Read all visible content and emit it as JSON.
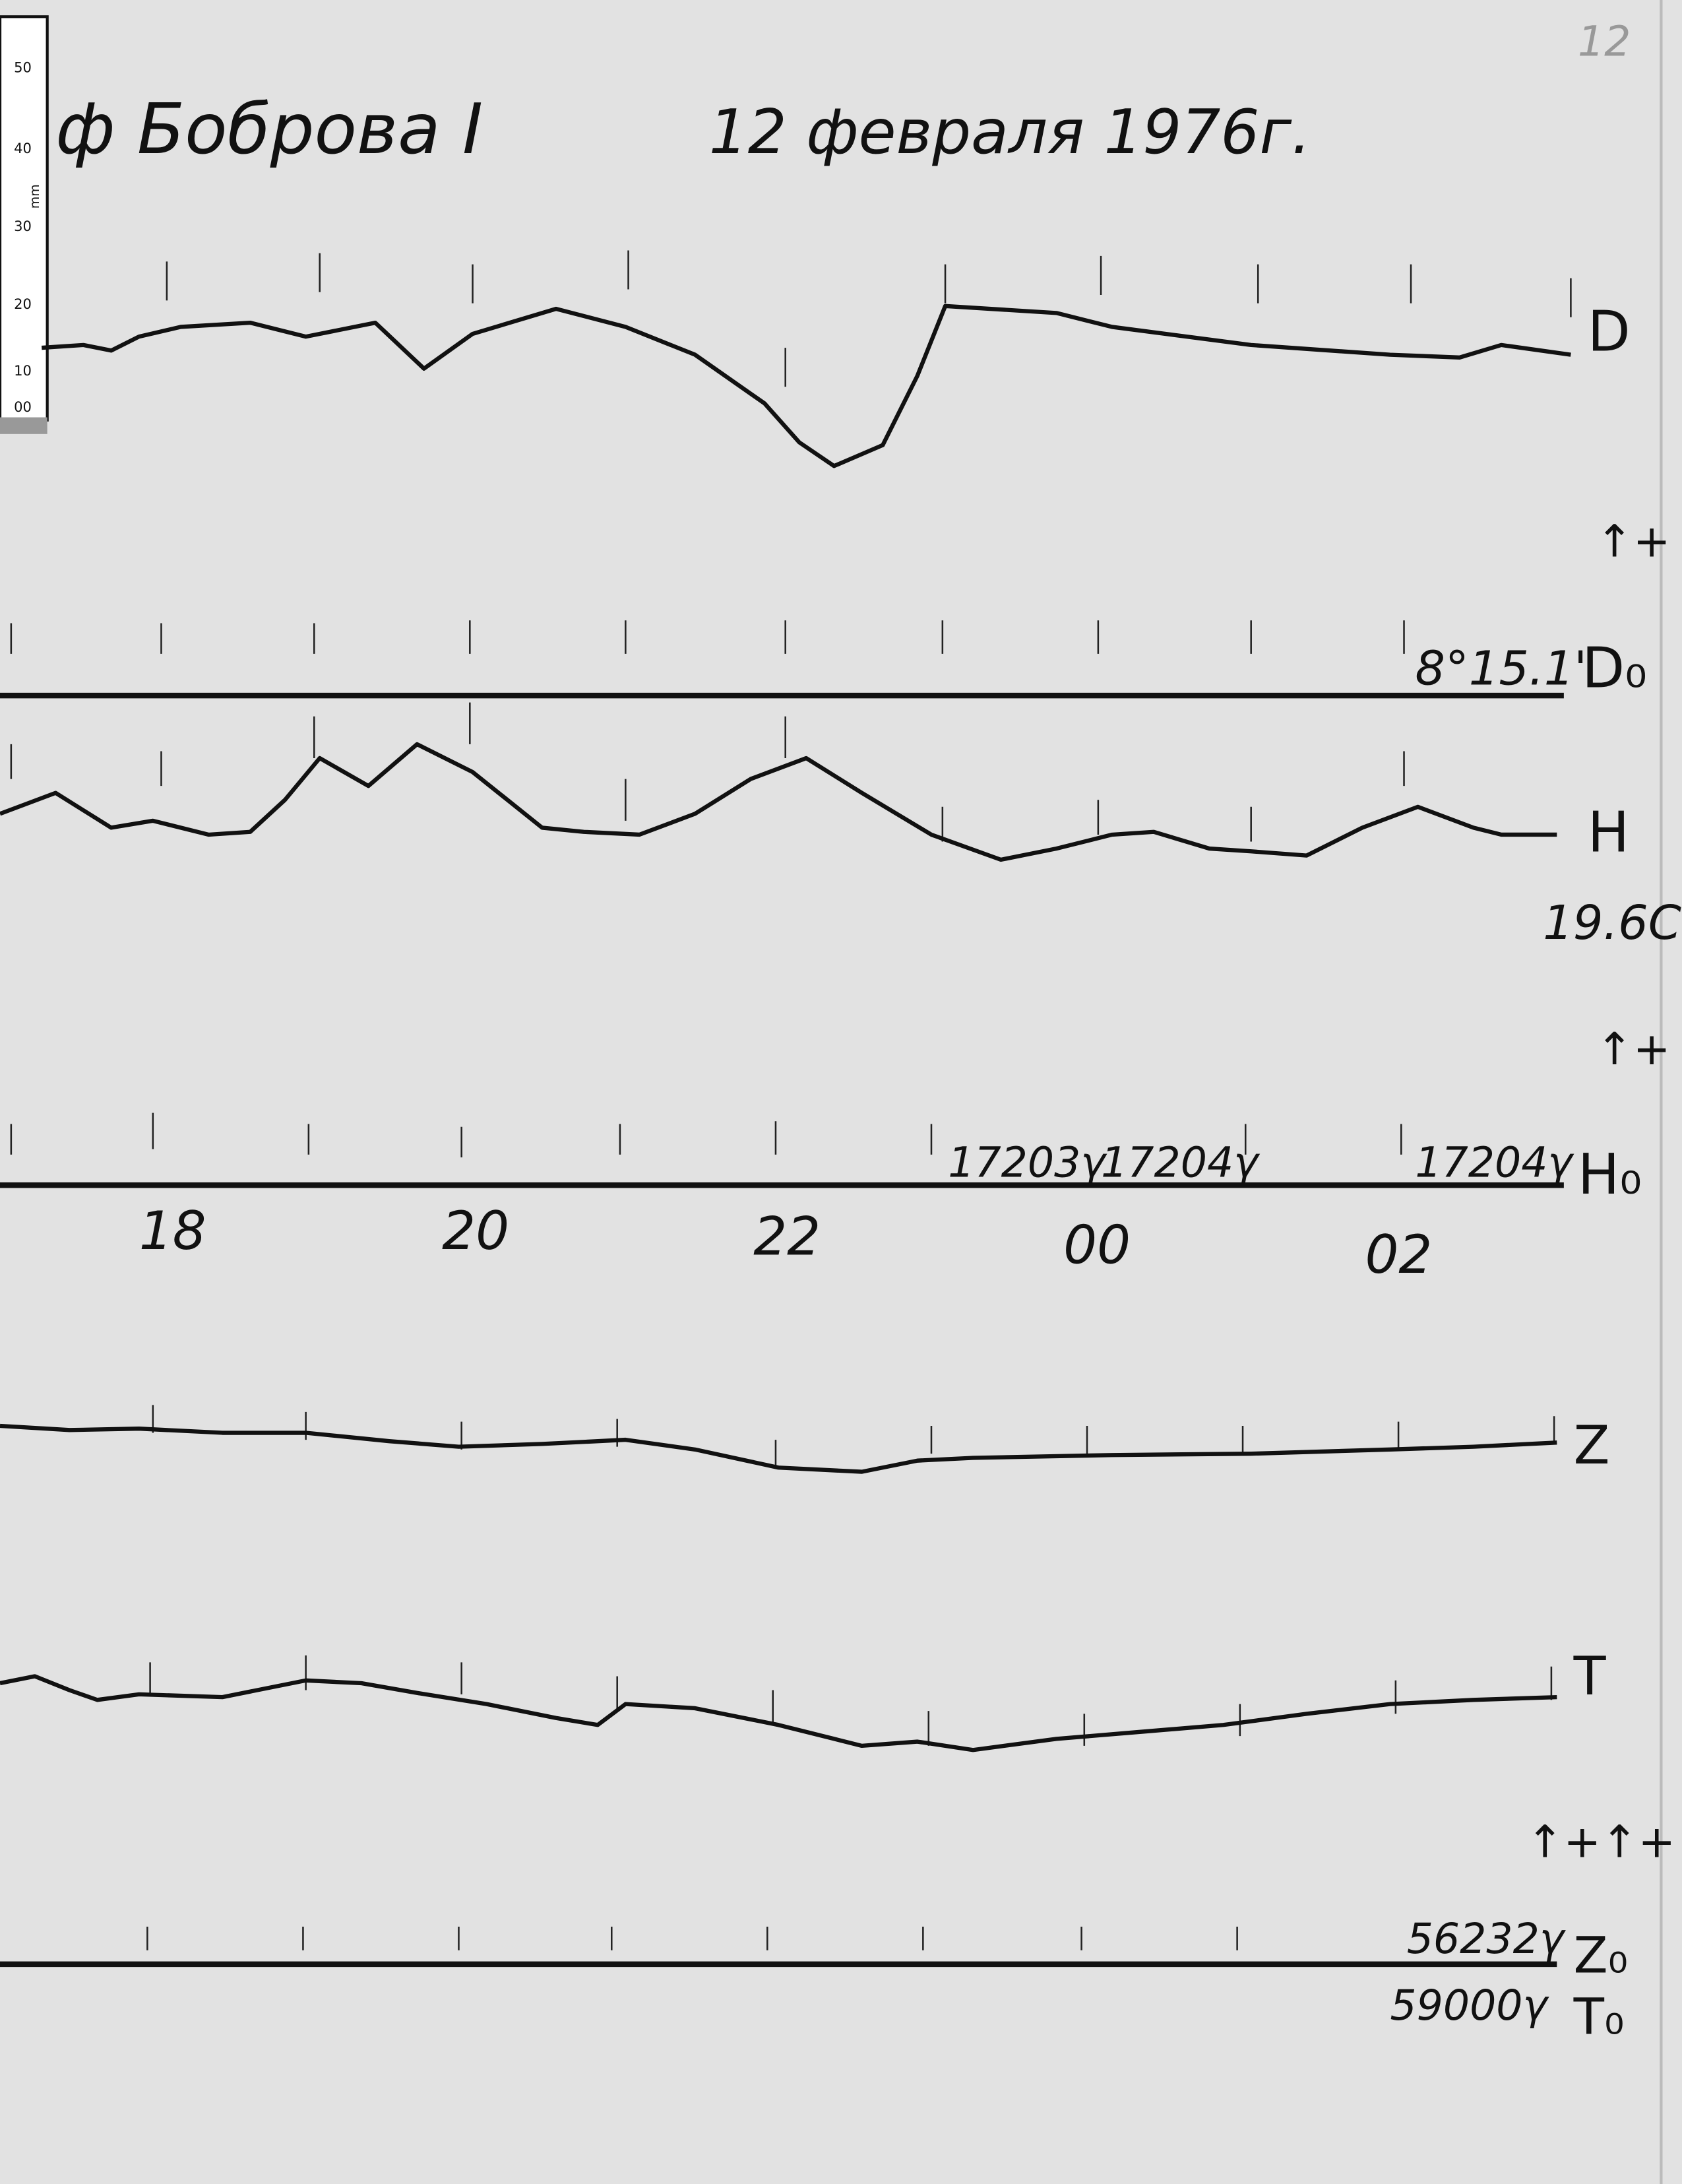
{
  "header": {
    "title": "ф Боброва I",
    "date": "12 февраля 1976г.",
    "page_number": "12"
  },
  "ruler": {
    "labels": [
      "50",
      "40",
      "30",
      "20",
      "10",
      "00"
    ],
    "unit": "mm"
  },
  "channels": {
    "d": {
      "label": "D",
      "direction": "↑+",
      "base_label": "D₀",
      "base_value": "8°15.1'"
    },
    "h": {
      "label": "H",
      "temperature": "19.6C",
      "direction": "↑+",
      "base_label": "H₀",
      "base_values": [
        "17203γ",
        "17204γ",
        "17204γ"
      ]
    },
    "z": {
      "label": "Z"
    },
    "t": {
      "label": "T",
      "direction": "↑+↑+",
      "base_labels": [
        "Z₀",
        "T₀"
      ],
      "base_values": [
        "56232γ",
        "59000γ"
      ]
    }
  },
  "time_labels": [
    "18",
    "20",
    "22",
    "00",
    "02"
  ]
}
